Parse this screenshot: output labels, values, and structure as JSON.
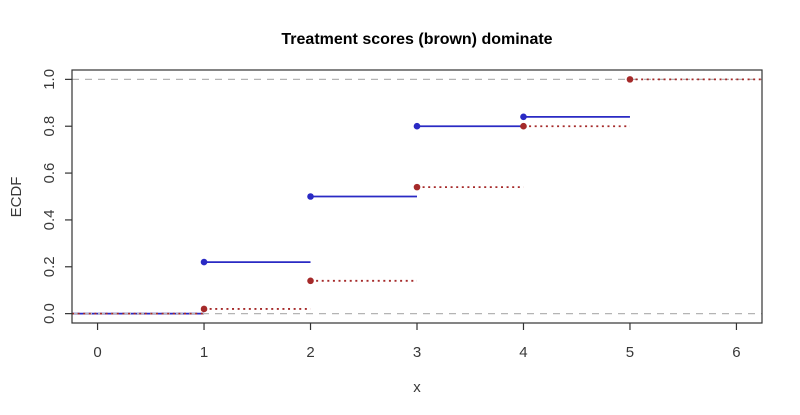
{
  "page": {
    "background": "#ffffff"
  },
  "chart_data": {
    "type": "line",
    "subtype": "ecdf-step",
    "title": "Treatment scores (brown) dominate",
    "xlabel": "x",
    "ylabel": "ECDF",
    "xlim": [
      -0.24,
      6.24
    ],
    "ylim": [
      -0.04,
      1.04
    ],
    "x_ticks": [
      "0",
      "1",
      "2",
      "3",
      "4",
      "5",
      "6"
    ],
    "y_ticks": [
      "0.0",
      "0.2",
      "0.4",
      "0.6",
      "0.8",
      "1.0"
    ],
    "grid": false,
    "legend_position": "none",
    "axis_color": "#333333",
    "tick_label_color": "#383838",
    "reference_lines": [
      {
        "axis": "y",
        "value": 0,
        "style": "dashed",
        "color": "#b4b4b4"
      },
      {
        "axis": "y",
        "value": 1,
        "style": "dashed",
        "color": "#b4b4b4"
      }
    ],
    "series": [
      {
        "name": "blue",
        "color": "#2a2ac4",
        "line_style": "solid",
        "line_width": 1.8,
        "marker": "filled-circle",
        "leader": {
          "y": 0,
          "from_x": "left-edge",
          "to_x": 1
        },
        "steps": [
          {
            "x": 1,
            "y": 0.22,
            "to_x": 2
          },
          {
            "x": 2,
            "y": 0.5,
            "to_x": 3
          },
          {
            "x": 3,
            "y": 0.8,
            "to_x": 4
          },
          {
            "x": 4,
            "y": 0.84,
            "to_x": 5
          }
        ]
      },
      {
        "name": "brown",
        "color": "#a52a2a",
        "line_style": "dotted",
        "line_width": 1.8,
        "marker": "filled-circle",
        "leader": {
          "y": 0,
          "from_x": "left-edge",
          "to_x": 1
        },
        "steps": [
          {
            "x": 1,
            "y": 0.02,
            "to_x": 2
          },
          {
            "x": 2,
            "y": 0.14,
            "to_x": 3
          },
          {
            "x": 3,
            "y": 0.54,
            "to_x": 4
          },
          {
            "x": 4,
            "y": 0.8,
            "to_x": 5
          },
          {
            "x": 5,
            "y": 1.0,
            "to_x": "right-edge"
          }
        ]
      }
    ]
  }
}
